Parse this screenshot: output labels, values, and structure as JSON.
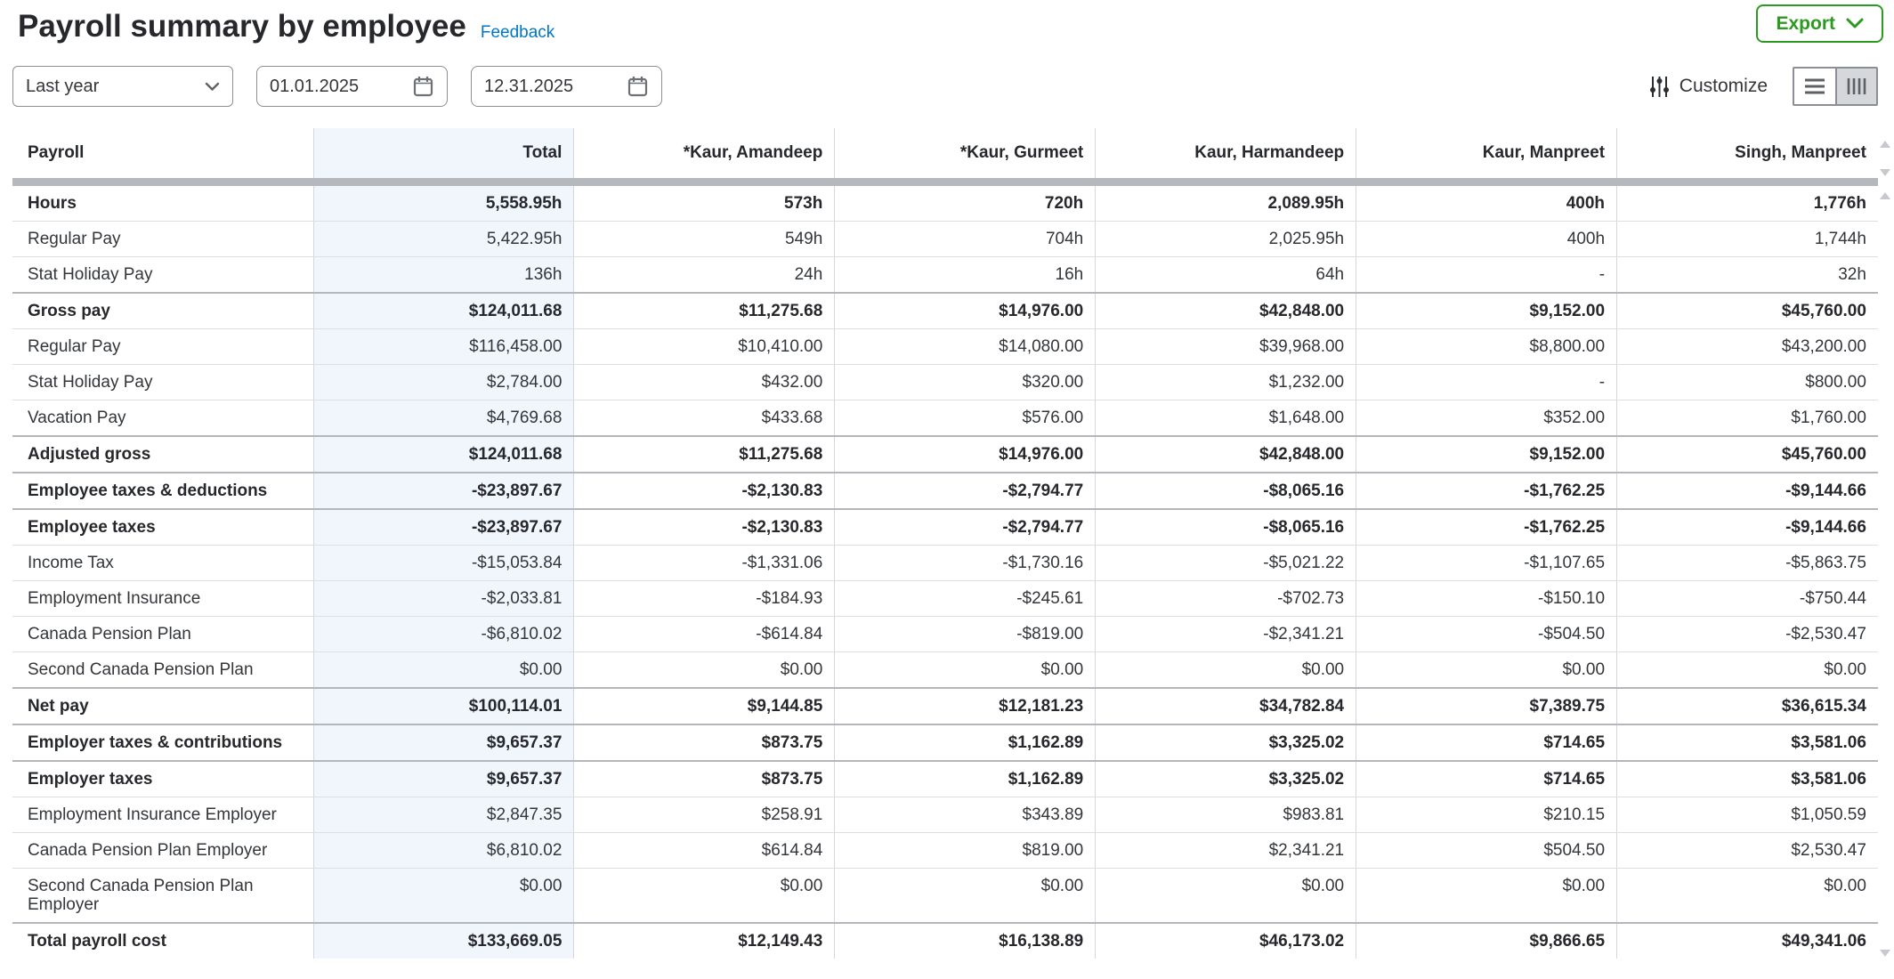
{
  "page": {
    "title": "Payroll summary by employee",
    "feedback_label": "Feedback"
  },
  "toolbar": {
    "export_label": "Export",
    "customize_label": "Customize"
  },
  "filters": {
    "date_range": "Last year",
    "start_date": "01.01.2025",
    "end_date": "12.31.2025"
  },
  "colors": {
    "accent_green": "#2b9a1e",
    "link_blue": "#0077C5",
    "total_column_bg": "#f1f5fc",
    "scrollbar_gray": "#b5b8bc"
  },
  "table": {
    "columns": [
      "Payroll",
      "Total",
      "*Kaur, Amandeep",
      "*Kaur, Gurmeet",
      "Kaur, Harmandeep",
      "Kaur, Manpreet",
      "Singh, Manpreet"
    ],
    "rows": [
      {
        "label": "Hours",
        "bold": true,
        "section": false,
        "values": [
          "5,558.95h",
          "573h",
          "720h",
          "2,089.95h",
          "400h",
          "1,776h"
        ]
      },
      {
        "label": "Regular Pay",
        "bold": false,
        "section": false,
        "values": [
          "5,422.95h",
          "549h",
          "704h",
          "2,025.95h",
          "400h",
          "1,744h"
        ]
      },
      {
        "label": "Stat Holiday Pay",
        "bold": false,
        "section": false,
        "values": [
          "136h",
          "24h",
          "16h",
          "64h",
          "-",
          "32h"
        ]
      },
      {
        "label": "Gross pay",
        "bold": true,
        "section": true,
        "values": [
          "$124,011.68",
          "$11,275.68",
          "$14,976.00",
          "$42,848.00",
          "$9,152.00",
          "$45,760.00"
        ]
      },
      {
        "label": "Regular Pay",
        "bold": false,
        "section": false,
        "values": [
          "$116,458.00",
          "$10,410.00",
          "$14,080.00",
          "$39,968.00",
          "$8,800.00",
          "$43,200.00"
        ]
      },
      {
        "label": "Stat Holiday Pay",
        "bold": false,
        "section": false,
        "values": [
          "$2,784.00",
          "$432.00",
          "$320.00",
          "$1,232.00",
          "-",
          "$800.00"
        ]
      },
      {
        "label": "Vacation Pay",
        "bold": false,
        "section": false,
        "values": [
          "$4,769.68",
          "$433.68",
          "$576.00",
          "$1,648.00",
          "$352.00",
          "$1,760.00"
        ]
      },
      {
        "label": "Adjusted gross",
        "bold": true,
        "section": true,
        "values": [
          "$124,011.68",
          "$11,275.68",
          "$14,976.00",
          "$42,848.00",
          "$9,152.00",
          "$45,760.00"
        ]
      },
      {
        "label": "Employee taxes & deductions",
        "bold": true,
        "section": true,
        "values": [
          "-$23,897.67",
          "-$2,130.83",
          "-$2,794.77",
          "-$8,065.16",
          "-$1,762.25",
          "-$9,144.66"
        ]
      },
      {
        "label": "Employee taxes",
        "bold": true,
        "section": true,
        "values": [
          "-$23,897.67",
          "-$2,130.83",
          "-$2,794.77",
          "-$8,065.16",
          "-$1,762.25",
          "-$9,144.66"
        ]
      },
      {
        "label": "Income Tax",
        "bold": false,
        "section": false,
        "values": [
          "-$15,053.84",
          "-$1,331.06",
          "-$1,730.16",
          "-$5,021.22",
          "-$1,107.65",
          "-$5,863.75"
        ]
      },
      {
        "label": "Employment Insurance",
        "bold": false,
        "section": false,
        "values": [
          "-$2,033.81",
          "-$184.93",
          "-$245.61",
          "-$702.73",
          "-$150.10",
          "-$750.44"
        ]
      },
      {
        "label": "Canada Pension Plan",
        "bold": false,
        "section": false,
        "values": [
          "-$6,810.02",
          "-$614.84",
          "-$819.00",
          "-$2,341.21",
          "-$504.50",
          "-$2,530.47"
        ]
      },
      {
        "label": "Second Canada Pension Plan",
        "bold": false,
        "section": false,
        "values": [
          "$0.00",
          "$0.00",
          "$0.00",
          "$0.00",
          "$0.00",
          "$0.00"
        ]
      },
      {
        "label": "Net pay",
        "bold": true,
        "section": true,
        "values": [
          "$100,114.01",
          "$9,144.85",
          "$12,181.23",
          "$34,782.84",
          "$7,389.75",
          "$36,615.34"
        ]
      },
      {
        "label": "Employer taxes & contributions",
        "bold": true,
        "section": true,
        "values": [
          "$9,657.37",
          "$873.75",
          "$1,162.89",
          "$3,325.02",
          "$714.65",
          "$3,581.06"
        ]
      },
      {
        "label": "Employer taxes",
        "bold": true,
        "section": true,
        "values": [
          "$9,657.37",
          "$873.75",
          "$1,162.89",
          "$3,325.02",
          "$714.65",
          "$3,581.06"
        ]
      },
      {
        "label": "Employment Insurance Employer",
        "bold": false,
        "section": false,
        "values": [
          "$2,847.35",
          "$258.91",
          "$343.89",
          "$983.81",
          "$210.15",
          "$1,050.59"
        ]
      },
      {
        "label": "Canada Pension Plan Employer",
        "bold": false,
        "section": false,
        "values": [
          "$6,810.02",
          "$614.84",
          "$819.00",
          "$2,341.21",
          "$504.50",
          "$2,530.47"
        ]
      },
      {
        "label": "Second Canada Pension Plan Employer",
        "bold": false,
        "section": false,
        "values": [
          "$0.00",
          "$0.00",
          "$0.00",
          "$0.00",
          "$0.00",
          "$0.00"
        ]
      },
      {
        "label": "Total payroll cost",
        "bold": true,
        "section": true,
        "values": [
          "$133,669.05",
          "$12,149.43",
          "$16,138.89",
          "$46,173.02",
          "$9,866.65",
          "$49,341.06"
        ]
      }
    ]
  }
}
